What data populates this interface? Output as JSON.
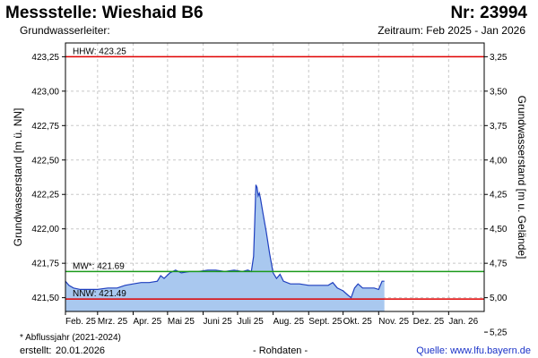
{
  "header": {
    "title": "Messstelle: Wieshaid B6",
    "nr": "Nr: 23994",
    "aquifer": "Grundwasserleiter:",
    "period": "Zeitraum: Feb 2025 - Jan 2026"
  },
  "footer": {
    "footnote": "* Abflussjahr (2021-2024)",
    "created_label": "erstellt:",
    "created_date": "20.01.2026",
    "rawdata": "- Rohdaten -",
    "source_label": "Quelle:",
    "source_url": "www.lfu.bayern.de"
  },
  "colors": {
    "area_fill": "#a9c8ef",
    "line": "#1f3fbf",
    "hhw": "#e00000",
    "mw": "#1a9a1a",
    "nnw": "#e00000",
    "grid": "#c8c8c8"
  },
  "chart_data": {
    "type": "area",
    "ylabel": "Grundwasserstand [m ü. NN]",
    "y2label": "Grundwasserstand [m u. Gelände]",
    "ylim": [
      421.4,
      423.35
    ],
    "y_ticks": [
      "423,25",
      "423,00",
      "422,75",
      "422,50",
      "422,25",
      "422,00",
      "421,75",
      "421,50"
    ],
    "y_tick_values": [
      423.25,
      423.0,
      422.75,
      422.5,
      422.25,
      422.0,
      421.75,
      421.5
    ],
    "y2_ticks": [
      "3,25",
      "3,50",
      "3,75",
      "4,00",
      "4,25",
      "4,50",
      "4,75",
      "5,00",
      "5,25"
    ],
    "y2_tick_values": [
      3.25,
      3.5,
      3.75,
      4.0,
      4.25,
      4.5,
      4.75,
      5.0,
      5.25
    ],
    "x_domain": [
      "2025-02-01",
      "2026-02-01"
    ],
    "x_ticks": [
      {
        "date": "2025-02-01",
        "label": "Feb. 25"
      },
      {
        "date": "2025-03-01",
        "label": "Mrz. 25"
      },
      {
        "date": "2025-04-01",
        "label": "Apr. 25"
      },
      {
        "date": "2025-05-01",
        "label": "Mai 25"
      },
      {
        "date": "2025-06-01",
        "label": "Juni 25"
      },
      {
        "date": "2025-07-01",
        "label": "Juli 25"
      },
      {
        "date": "2025-08-01",
        "label": "Aug. 25"
      },
      {
        "date": "2025-09-01",
        "label": "Sept. 25"
      },
      {
        "date": "2025-10-01",
        "label": "Okt. 25"
      },
      {
        "date": "2025-11-01",
        "label": "Nov. 25"
      },
      {
        "date": "2025-12-01",
        "label": "Dez. 25"
      },
      {
        "date": "2026-01-01",
        "label": "Jan. 26"
      }
    ],
    "reference_lines": [
      {
        "key": "hhw",
        "label": "HHW: 423.25",
        "value": 423.25
      },
      {
        "key": "mw",
        "label": "MW*: 421.69",
        "value": 421.69
      },
      {
        "key": "nnw",
        "label": "NNW: 421.49",
        "value": 421.49
      }
    ],
    "grid": true,
    "series": [
      {
        "points": [
          [
            "2025-02-01",
            421.62
          ],
          [
            "2025-02-04",
            421.59
          ],
          [
            "2025-02-08",
            421.57
          ],
          [
            "2025-02-14",
            421.56
          ],
          [
            "2025-02-22",
            421.56
          ],
          [
            "2025-03-01",
            421.56
          ],
          [
            "2025-03-10",
            421.57
          ],
          [
            "2025-03-18",
            421.57
          ],
          [
            "2025-03-25",
            421.59
          ],
          [
            "2025-04-01",
            421.6
          ],
          [
            "2025-04-08",
            421.61
          ],
          [
            "2025-04-15",
            421.61
          ],
          [
            "2025-04-22",
            421.62
          ],
          [
            "2025-04-25",
            421.66
          ],
          [
            "2025-04-28",
            421.64
          ],
          [
            "2025-05-03",
            421.68
          ],
          [
            "2025-05-08",
            421.7
          ],
          [
            "2025-05-13",
            421.68
          ],
          [
            "2025-05-20",
            421.69
          ],
          [
            "2025-05-28",
            421.69
          ],
          [
            "2025-06-05",
            421.7
          ],
          [
            "2025-06-12",
            421.7
          ],
          [
            "2025-06-20",
            421.69
          ],
          [
            "2025-06-28",
            421.7
          ],
          [
            "2025-07-05",
            421.69
          ],
          [
            "2025-07-10",
            421.7
          ],
          [
            "2025-07-13",
            421.69
          ],
          [
            "2025-07-15",
            421.8
          ],
          [
            "2025-07-16",
            422.05
          ],
          [
            "2025-07-17",
            422.32
          ],
          [
            "2025-07-18",
            422.3
          ],
          [
            "2025-07-19",
            422.24
          ],
          [
            "2025-07-20",
            422.26
          ],
          [
            "2025-07-21",
            422.22
          ],
          [
            "2025-07-23",
            422.12
          ],
          [
            "2025-07-26",
            421.98
          ],
          [
            "2025-07-29",
            421.82
          ],
          [
            "2025-08-01",
            421.68
          ],
          [
            "2025-08-04",
            421.64
          ],
          [
            "2025-08-07",
            421.67
          ],
          [
            "2025-08-10",
            421.62
          ],
          [
            "2025-08-16",
            421.6
          ],
          [
            "2025-08-24",
            421.6
          ],
          [
            "2025-09-01",
            421.59
          ],
          [
            "2025-09-10",
            421.59
          ],
          [
            "2025-09-18",
            421.59
          ],
          [
            "2025-09-22",
            421.61
          ],
          [
            "2025-09-26",
            421.57
          ],
          [
            "2025-10-01",
            421.55
          ],
          [
            "2025-10-05",
            421.52
          ],
          [
            "2025-10-08",
            421.5
          ],
          [
            "2025-10-11",
            421.57
          ],
          [
            "2025-10-14",
            421.6
          ],
          [
            "2025-10-18",
            421.57
          ],
          [
            "2025-10-22",
            421.57
          ],
          [
            "2025-10-28",
            421.57
          ],
          [
            "2025-11-01",
            421.56
          ],
          [
            "2025-11-04",
            421.62
          ],
          [
            "2025-11-06",
            421.62
          ]
        ]
      }
    ]
  }
}
